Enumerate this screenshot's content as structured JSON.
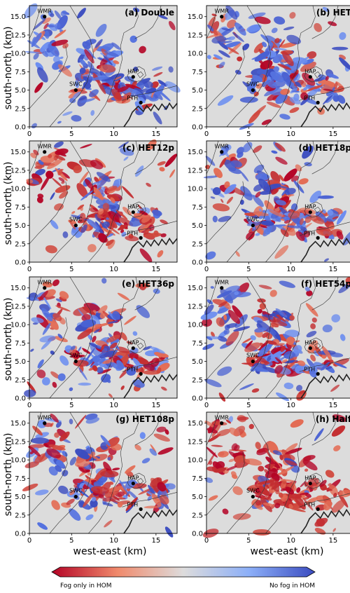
{
  "figure": {
    "ylabel": "south-north (km)",
    "xlabel": "west-east (km)",
    "x_ticks": [
      "0",
      "5",
      "10",
      "15"
    ],
    "y_ticks": [
      "0.0",
      "2.5",
      "5.0",
      "7.5",
      "10.0",
      "12.5",
      "15.0"
    ],
    "xlim": [
      0,
      17.5
    ],
    "ylim": [
      0,
      16.5
    ],
    "background_color": "#dcdcdc",
    "colorbar": {
      "left_label": "Fog only in HOM",
      "right_label": "No fog in HOM",
      "colormap": "coolwarm (red to blue)",
      "low_color": "#b40426",
      "mid_color": "#dddcdc",
      "high_color": "#3b4cc0"
    }
  },
  "sites": [
    {
      "name": "WMR",
      "x": 1.8,
      "y": 15.0
    },
    {
      "name": "HAP",
      "x": 12.3,
      "y": 6.8
    },
    {
      "name": "SWC",
      "x": 5.5,
      "y": 5.0
    },
    {
      "name": "PTH",
      "x": 13.2,
      "y": 3.3
    }
  ],
  "panels": [
    {
      "title": "(a) Double",
      "red": 0.25,
      "blue": 0.75
    },
    {
      "title": "(b) HET",
      "red": 0.35,
      "blue": 0.65
    },
    {
      "title": "(c) HET12p",
      "red": 0.7,
      "blue": 0.3
    },
    {
      "title": "(d) HET18p",
      "red": 0.5,
      "blue": 0.5
    },
    {
      "title": "(e) HET36p",
      "red": 0.45,
      "blue": 0.55
    },
    {
      "title": "(f) HET54p",
      "red": 0.45,
      "blue": 0.55
    },
    {
      "title": "(g) HET108p",
      "red": 0.55,
      "blue": 0.45
    },
    {
      "title": "(h) Half",
      "red": 0.9,
      "blue": 0.1
    }
  ]
}
